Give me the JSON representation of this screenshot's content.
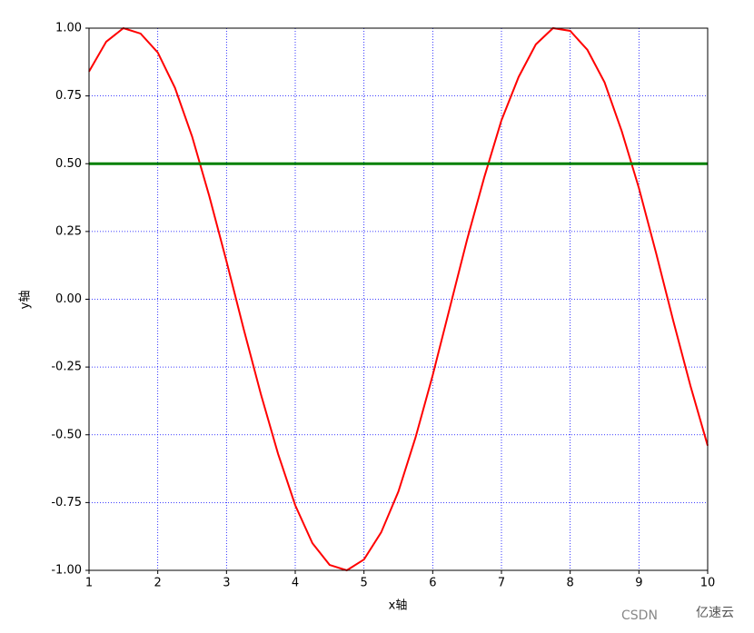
{
  "chart_data": {
    "type": "line",
    "xlabel": "x轴",
    "ylabel": "y轴",
    "series": [
      {
        "color": "#ff0000",
        "x": [
          1,
          1.25,
          1.5,
          1.75,
          2,
          2.25,
          2.5,
          2.75,
          3,
          3.25,
          3.5,
          3.75,
          4,
          4.25,
          4.5,
          4.75,
          5,
          5.25,
          5.5,
          5.75,
          6,
          6.25,
          6.5,
          6.75,
          7,
          7.25,
          7.5,
          7.75,
          8,
          8.25,
          8.5,
          8.75,
          9,
          9.25,
          9.5,
          9.75,
          10
        ],
        "values": [
          0.84,
          0.95,
          1.0,
          0.98,
          0.91,
          0.78,
          0.6,
          0.38,
          0.14,
          -0.11,
          -0.35,
          -0.57,
          -0.76,
          -0.9,
          -0.98,
          -1.0,
          -0.96,
          -0.86,
          -0.71,
          -0.51,
          -0.28,
          -0.03,
          0.22,
          0.45,
          0.66,
          0.82,
          0.94,
          1.0,
          0.99,
          0.92,
          0.8,
          0.62,
          0.41,
          0.17,
          -0.08,
          -0.32,
          -0.54
        ]
      },
      {
        "color": "#008000",
        "x": [
          1,
          10
        ],
        "values": [
          0.5,
          0.5
        ]
      }
    ],
    "xlim": [
      1,
      10
    ],
    "xticks": [
      1,
      2,
      3,
      4,
      5,
      6,
      7,
      8,
      9,
      10
    ],
    "ylim": [
      -1,
      1
    ],
    "yticks": [
      {
        "value": -1,
        "label": "-1.00"
      },
      {
        "value": -0.75,
        "label": "-0.75"
      },
      {
        "value": -0.5,
        "label": "-0.50"
      },
      {
        "value": -0.25,
        "label": "-0.25"
      },
      {
        "value": 0,
        "label": "0.00"
      },
      {
        "value": 0.25,
        "label": "0.25"
      },
      {
        "value": 0.5,
        "label": "0.50"
      },
      {
        "value": 0.75,
        "label": "0.75"
      },
      {
        "value": 1,
        "label": "1.00"
      }
    ],
    "grid": true,
    "grid_color": "#0000ff",
    "watermark": [
      "CSDN",
      "亿速云"
    ]
  }
}
